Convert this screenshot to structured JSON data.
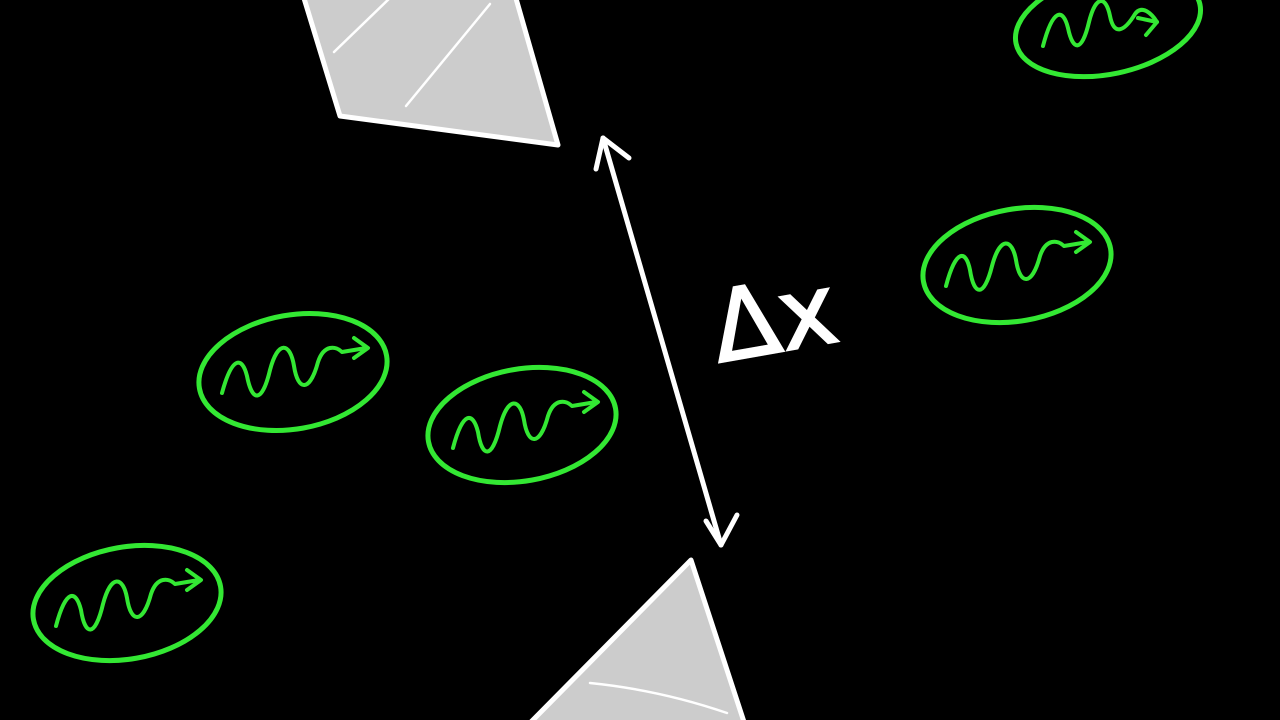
{
  "colors": {
    "background": "#000000",
    "outline": "#ffffff",
    "shard_fill": "#cccccc",
    "particle_stroke": "#33e833"
  },
  "labels": {
    "gap": "Δx"
  },
  "icons": {
    "particle": "wavy-arrow-in-ellipse-icon",
    "shard": "polygon-shard-icon",
    "arrow": "double-headed-arrow-icon"
  }
}
